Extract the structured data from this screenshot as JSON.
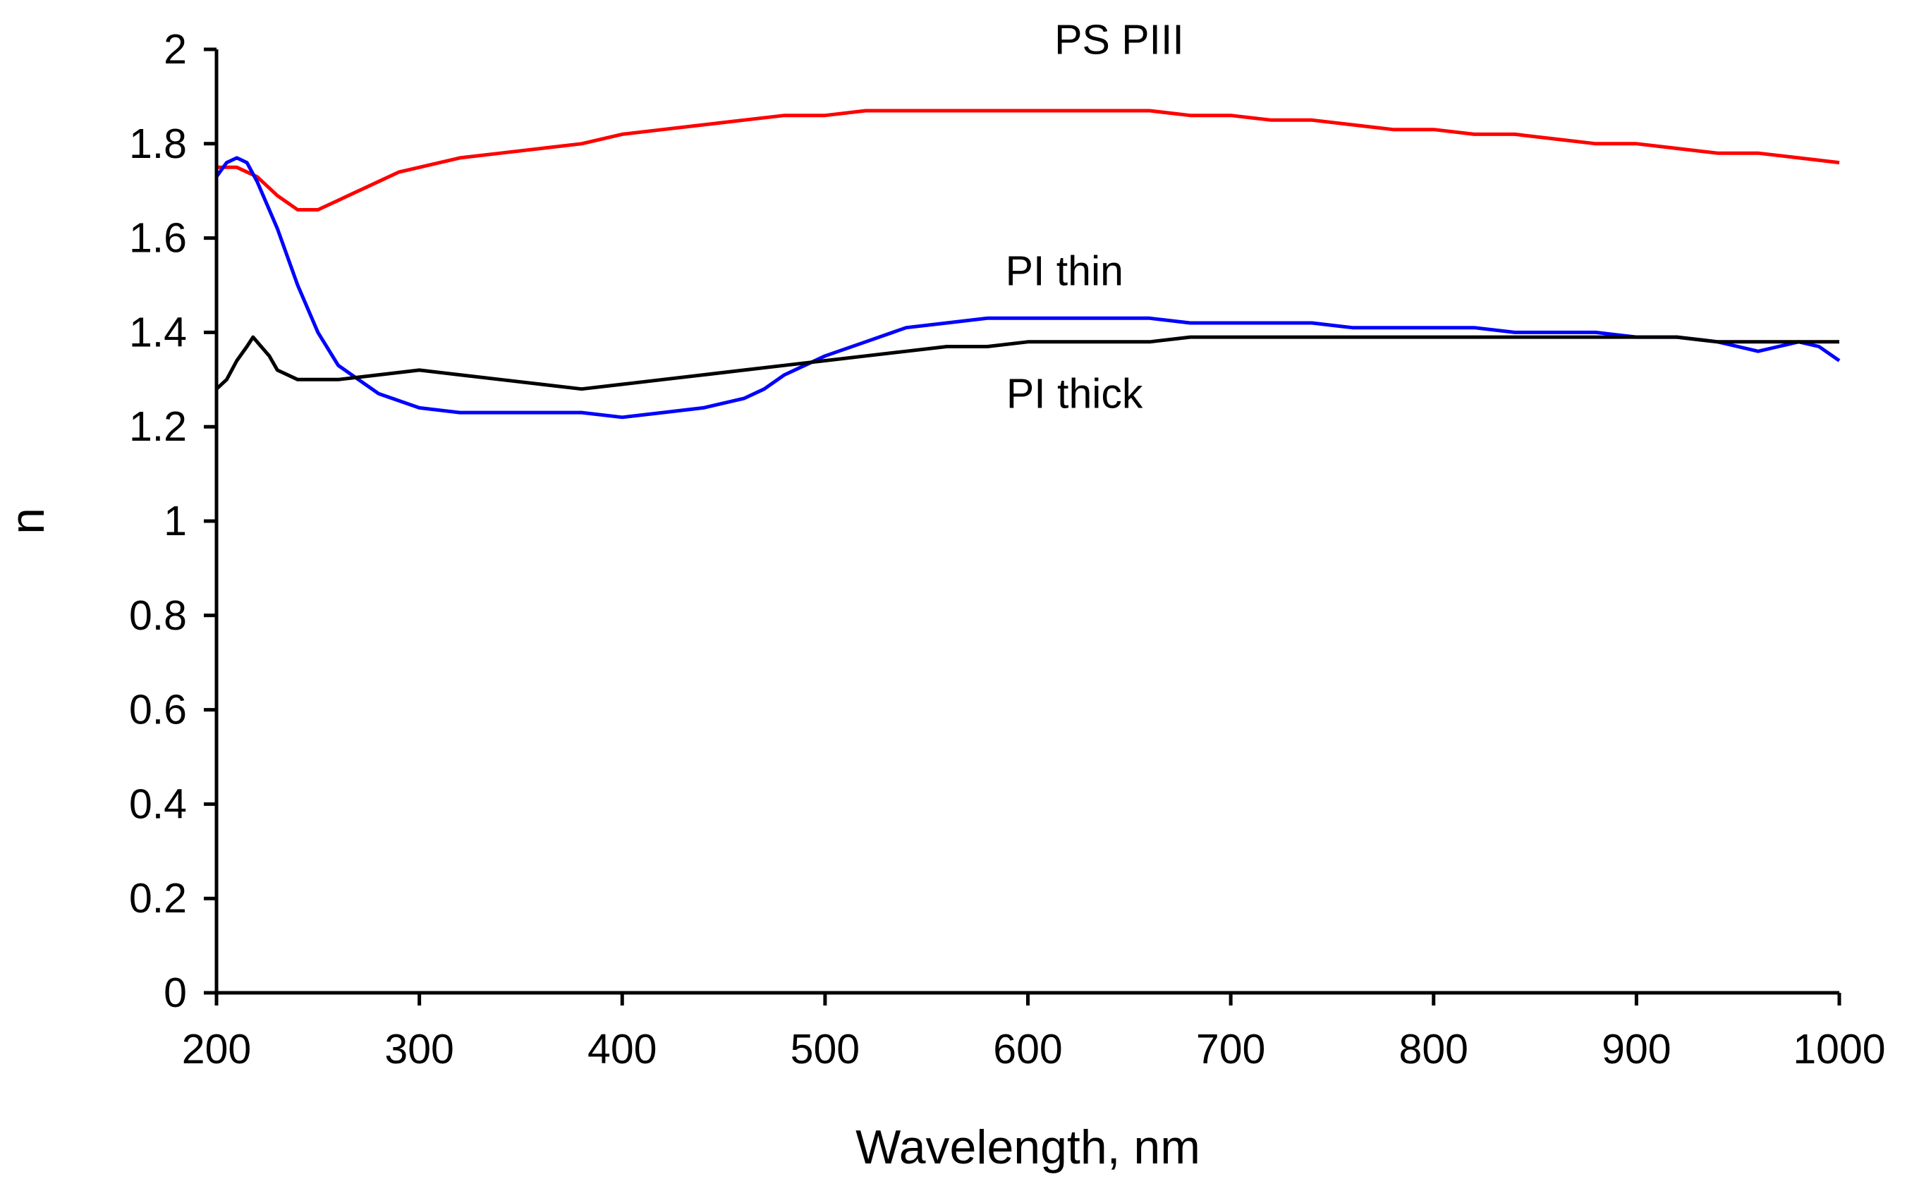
{
  "chart_data": {
    "type": "line",
    "title": "",
    "xlabel": "Wavelength, nm",
    "ylabel": "n",
    "xlim": [
      200,
      1000
    ],
    "ylim": [
      0,
      2
    ],
    "xticks": [
      200,
      300,
      400,
      500,
      600,
      700,
      800,
      900,
      1000
    ],
    "yticks": [
      0,
      0.2,
      0.4,
      0.6,
      0.8,
      1,
      1.2,
      1.4,
      1.6,
      1.8,
      2
    ],
    "ytick_labels": [
      "0",
      "0.2",
      "0.4",
      "0.6",
      "0.8",
      "1",
      "1.2",
      "1.4",
      "1.6",
      "1.8",
      "2"
    ],
    "grid": false,
    "legend": "none",
    "series": [
      {
        "name": "PS PIII",
        "color": "#ff0000",
        "x": [
          200,
          210,
          220,
          230,
          240,
          250,
          260,
          270,
          280,
          290,
          300,
          320,
          340,
          360,
          380,
          400,
          420,
          440,
          460,
          480,
          500,
          520,
          540,
          560,
          580,
          600,
          620,
          640,
          660,
          680,
          700,
          720,
          740,
          760,
          780,
          800,
          820,
          840,
          860,
          880,
          900,
          920,
          940,
          960,
          980,
          1000
        ],
        "y": [
          1.75,
          1.75,
          1.73,
          1.69,
          1.66,
          1.66,
          1.68,
          1.7,
          1.72,
          1.74,
          1.75,
          1.77,
          1.78,
          1.79,
          1.8,
          1.82,
          1.83,
          1.84,
          1.85,
          1.86,
          1.86,
          1.87,
          1.87,
          1.87,
          1.87,
          1.87,
          1.87,
          1.87,
          1.87,
          1.86,
          1.86,
          1.85,
          1.85,
          1.84,
          1.83,
          1.83,
          1.82,
          1.82,
          1.81,
          1.8,
          1.8,
          1.79,
          1.78,
          1.78,
          1.77,
          1.76
        ]
      },
      {
        "name": "PI thin",
        "color": "#0000ff",
        "x": [
          200,
          205,
          210,
          215,
          220,
          230,
          240,
          250,
          260,
          270,
          280,
          300,
          320,
          340,
          360,
          380,
          400,
          420,
          440,
          460,
          470,
          480,
          490,
          500,
          520,
          540,
          560,
          580,
          600,
          620,
          640,
          660,
          680,
          700,
          720,
          740,
          760,
          780,
          800,
          820,
          840,
          860,
          880,
          900,
          920,
          940,
          950,
          960,
          970,
          980,
          990,
          1000
        ],
        "y": [
          1.73,
          1.76,
          1.77,
          1.76,
          1.72,
          1.62,
          1.5,
          1.4,
          1.33,
          1.3,
          1.27,
          1.24,
          1.23,
          1.23,
          1.23,
          1.23,
          1.22,
          1.23,
          1.24,
          1.26,
          1.28,
          1.31,
          1.33,
          1.35,
          1.38,
          1.41,
          1.42,
          1.43,
          1.43,
          1.43,
          1.43,
          1.43,
          1.42,
          1.42,
          1.42,
          1.42,
          1.41,
          1.41,
          1.41,
          1.41,
          1.4,
          1.4,
          1.4,
          1.39,
          1.39,
          1.38,
          1.37,
          1.36,
          1.37,
          1.38,
          1.37,
          1.34
        ]
      },
      {
        "name": "PI thick",
        "color": "#000000",
        "x": [
          200,
          205,
          210,
          215,
          218,
          222,
          226,
          230,
          240,
          260,
          280,
          300,
          320,
          340,
          360,
          380,
          400,
          420,
          440,
          460,
          480,
          500,
          520,
          540,
          560,
          580,
          600,
          620,
          640,
          660,
          680,
          700,
          720,
          740,
          760,
          780,
          800,
          820,
          840,
          860,
          880,
          900,
          920,
          940,
          960,
          980,
          1000
        ],
        "y": [
          1.28,
          1.3,
          1.34,
          1.37,
          1.39,
          1.37,
          1.35,
          1.32,
          1.3,
          1.3,
          1.31,
          1.32,
          1.31,
          1.3,
          1.29,
          1.28,
          1.29,
          1.3,
          1.31,
          1.32,
          1.33,
          1.34,
          1.35,
          1.36,
          1.37,
          1.37,
          1.38,
          1.38,
          1.38,
          1.38,
          1.39,
          1.39,
          1.39,
          1.39,
          1.39,
          1.39,
          1.39,
          1.39,
          1.39,
          1.39,
          1.39,
          1.39,
          1.39,
          1.38,
          1.38,
          1.38,
          1.38
        ]
      }
    ],
    "annotations": [
      {
        "text": "PS PIII",
        "x": 645,
        "y": 1.99
      },
      {
        "text": "PI thin",
        "x": 618,
        "y": 1.5
      },
      {
        "text": "PI thick",
        "x": 623,
        "y": 1.24
      }
    ]
  }
}
